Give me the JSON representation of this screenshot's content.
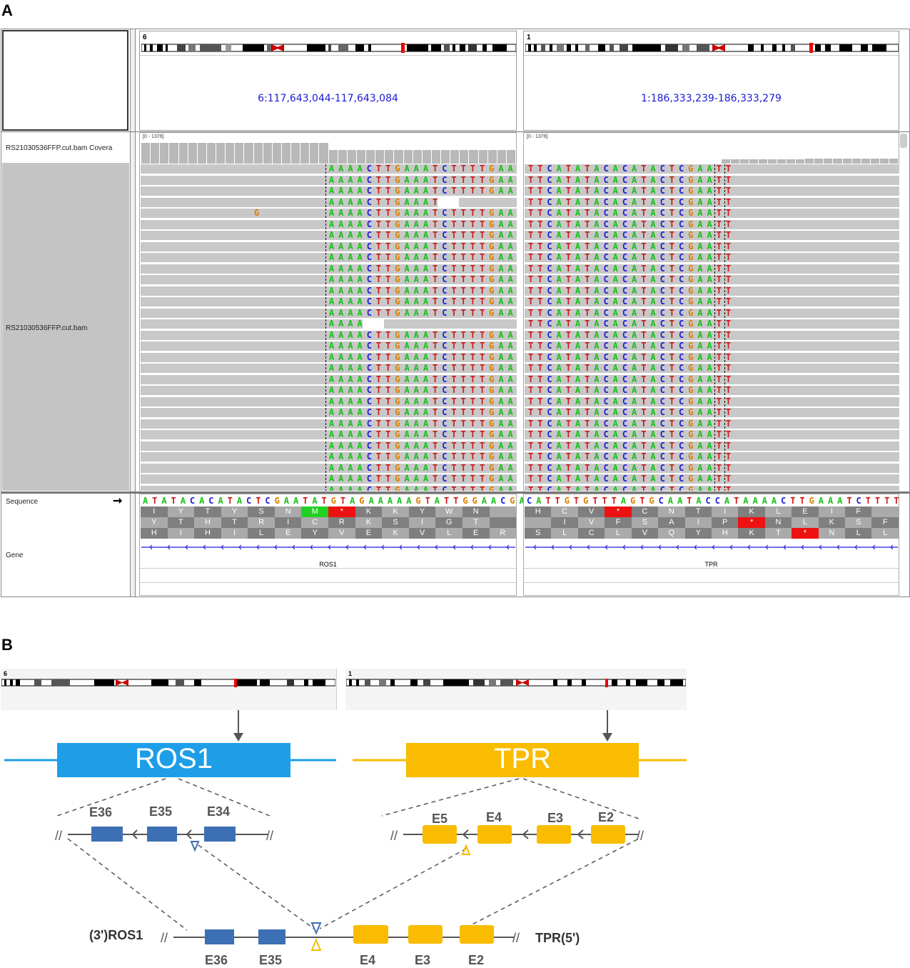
{
  "panels": {
    "a": "A",
    "b": "B"
  },
  "igv": {
    "left_locus": {
      "chr": "6",
      "range": "6:117,643,044-117,643,084"
    },
    "right_locus": {
      "chr": "1",
      "range": "1:186,333,239-186,333,279"
    },
    "coverage_track": "RS21030536FFP.cut.bam Covera",
    "alignment_track": "RS21030536FFP.cut.bam",
    "coverage_range_left": "[0 - 1376]",
    "coverage_range_right": "[0 - 1376]",
    "sequence_label": "Sequence",
    "sequence_arrow": "➞",
    "gene_label": "Gene",
    "left_seq": "ATATACACATACTCGAATATGTAGAAAAAGTATTGGAACGA",
    "right_seq": "CATTGTGTTTAGTGCAATACCATAAAACTTGAAATCTTTT",
    "left_read_seq": "AAAACTTGAAATCTTTTGAAC",
    "right_read_seq": "TTCATATACACATACTCGAAT",
    "mismatch_base": "G",
    "left_gene": "ROS1",
    "right_gene": "TPR",
    "left_aa_rows": [
      [
        "I",
        "Y",
        "T",
        "Y",
        "S",
        "N",
        "M",
        "*",
        "K",
        "K",
        "Y",
        "W",
        "N",
        ""
      ],
      [
        "Y",
        "T",
        "H",
        "T",
        "R",
        "I",
        "C",
        "R",
        "K",
        "S",
        "I",
        "G",
        "T",
        ""
      ],
      [
        "H",
        "I",
        "H",
        "I",
        "L",
        "E",
        "Y",
        "V",
        "E",
        "K",
        "V",
        "L",
        "E",
        "R"
      ]
    ],
    "right_aa_rows": [
      [
        "H",
        "C",
        "V",
        "*",
        "C",
        "N",
        "T",
        "I",
        "K",
        "L",
        "E",
        "I",
        "F",
        ""
      ],
      [
        "",
        "I",
        "V",
        "F",
        "S",
        "A",
        "I",
        "P",
        "*",
        "N",
        "L",
        "K",
        "S",
        "F"
      ],
      [
        "S",
        "L",
        "C",
        "L",
        "V",
        "Q",
        "Y",
        "H",
        "K",
        "T",
        "*",
        "N",
        "L",
        "L"
      ]
    ]
  },
  "diagram": {
    "chr_left": "6",
    "chr_right": "1",
    "gene_left": "ROS1",
    "gene_right": "TPR",
    "ros1_exons": [
      "E36",
      "E35",
      "E34"
    ],
    "tpr_exons": [
      "E5",
      "E4",
      "E3",
      "E2"
    ],
    "fusion_left_label": "(3')ROS1",
    "fusion_right_label": "TPR(5')",
    "fusion_exons": [
      "E36",
      "E35",
      "E4",
      "E3",
      "E2"
    ],
    "colors": {
      "ros1": "#1e9ee8",
      "tpr": "#f9bc00",
      "exon_blue": "#3d6fb5",
      "exon_orange": "#f9bc00"
    }
  }
}
